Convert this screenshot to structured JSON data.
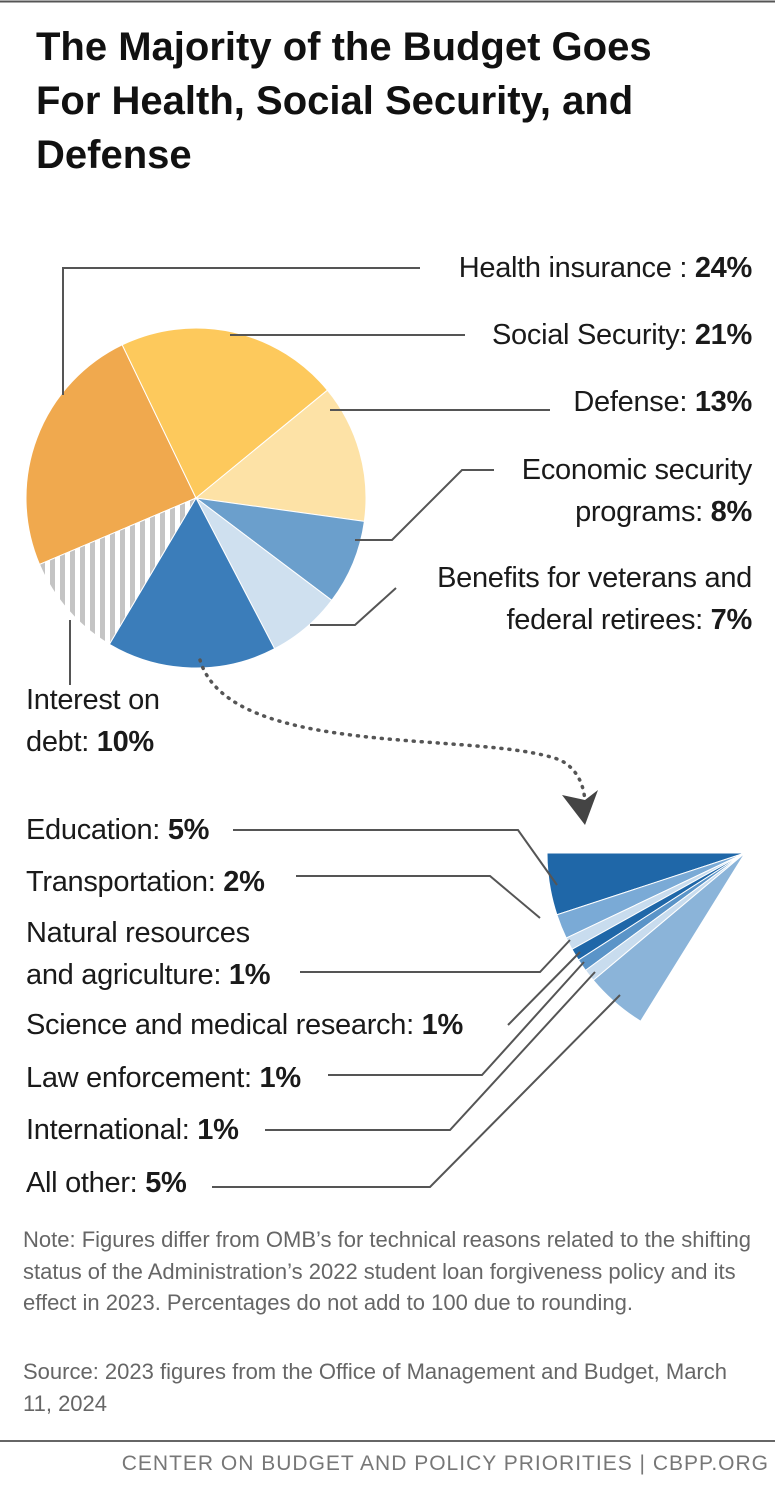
{
  "chart_data": [
    {
      "type": "pie",
      "title": "The Majority of the Budget Goes For Health, Social Security, and Defense",
      "categories": [
        "Health insurance :",
        "Social Security:",
        "Defense:",
        "Economic security programs:",
        "Benefits for veterans and federal retirees:",
        null,
        "Interest on debt:"
      ],
      "values": [
        24,
        21,
        13,
        8,
        7,
        16,
        10
      ],
      "value_labels": [
        "24%",
        "21%",
        "13%",
        "8%",
        "7%",
        null,
        "10%"
      ],
      "colors": [
        "#f0a94e",
        "#fdc95c",
        "#fde2a6",
        "#6b9fcc",
        "#cfe0ef",
        "#3b7dba",
        "#c4c4c4"
      ],
      "hatch": [
        false,
        false,
        false,
        false,
        false,
        false,
        true
      ]
    },
    {
      "type": "pie",
      "categories": [
        "Education:",
        "Transportation:",
        "Natural resources and agriculture:",
        "Science and medical research:",
        "Law enforcement:",
        "International:",
        "All other:"
      ],
      "values": [
        5,
        2,
        1,
        1,
        1,
        1,
        5
      ],
      "value_labels": [
        "5%",
        "2%",
        "1%",
        "1%",
        "1%",
        "1%",
        "5%"
      ],
      "colors": [
        "#1f67a8",
        "#7aaad6",
        "#c8dcee",
        "#1f67a8",
        "#5a94c8",
        "#c8dcee",
        "#8bb4d9"
      ]
    }
  ],
  "note": "Note: Figures differ from OMB’s for technical reasons related to the shifting status of the Administration’s 2022 student loan forgiveness policy and its effect in 2023. Percentages do not add to 100 due to rounding.",
  "source": "Source: 2023 figures from the Office of Management and Budget, March 11, 2024",
  "footer": "CENTER ON BUDGET AND POLICY PRIORITIES | CBPP.ORG"
}
